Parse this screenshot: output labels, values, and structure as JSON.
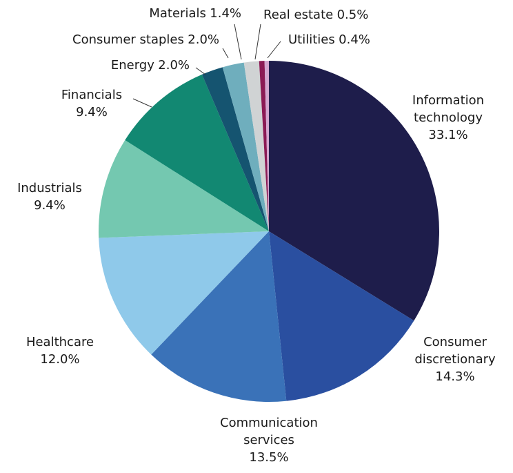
{
  "chart_data": {
    "type": "pie",
    "categories": [
      "Information technology",
      "Consumer discretionary",
      "Communication services",
      "Healthcare",
      "Industrials",
      "Financials",
      "Energy",
      "Consumer staples",
      "Materials",
      "Real estate",
      "Utilities"
    ],
    "values": [
      33.1,
      14.3,
      13.5,
      12.0,
      9.4,
      9.4,
      2.0,
      2.0,
      1.4,
      0.5,
      0.4
    ],
    "value_labels": [
      "33.1%",
      "14.3%",
      "13.5%",
      "12.0%",
      "9.4%",
      "9.4%",
      "2.0%",
      "2.0%",
      "1.4%",
      "0.5%",
      "0.4%"
    ],
    "colors": [
      "#1e1d4b",
      "#2a4fa0",
      "#3a72b8",
      "#8fc9ea",
      "#74c8b0",
      "#128872",
      "#155470",
      "#6faebd",
      "#d0d3d4",
      "#8b1a55",
      "#d4a6d0"
    ]
  }
}
